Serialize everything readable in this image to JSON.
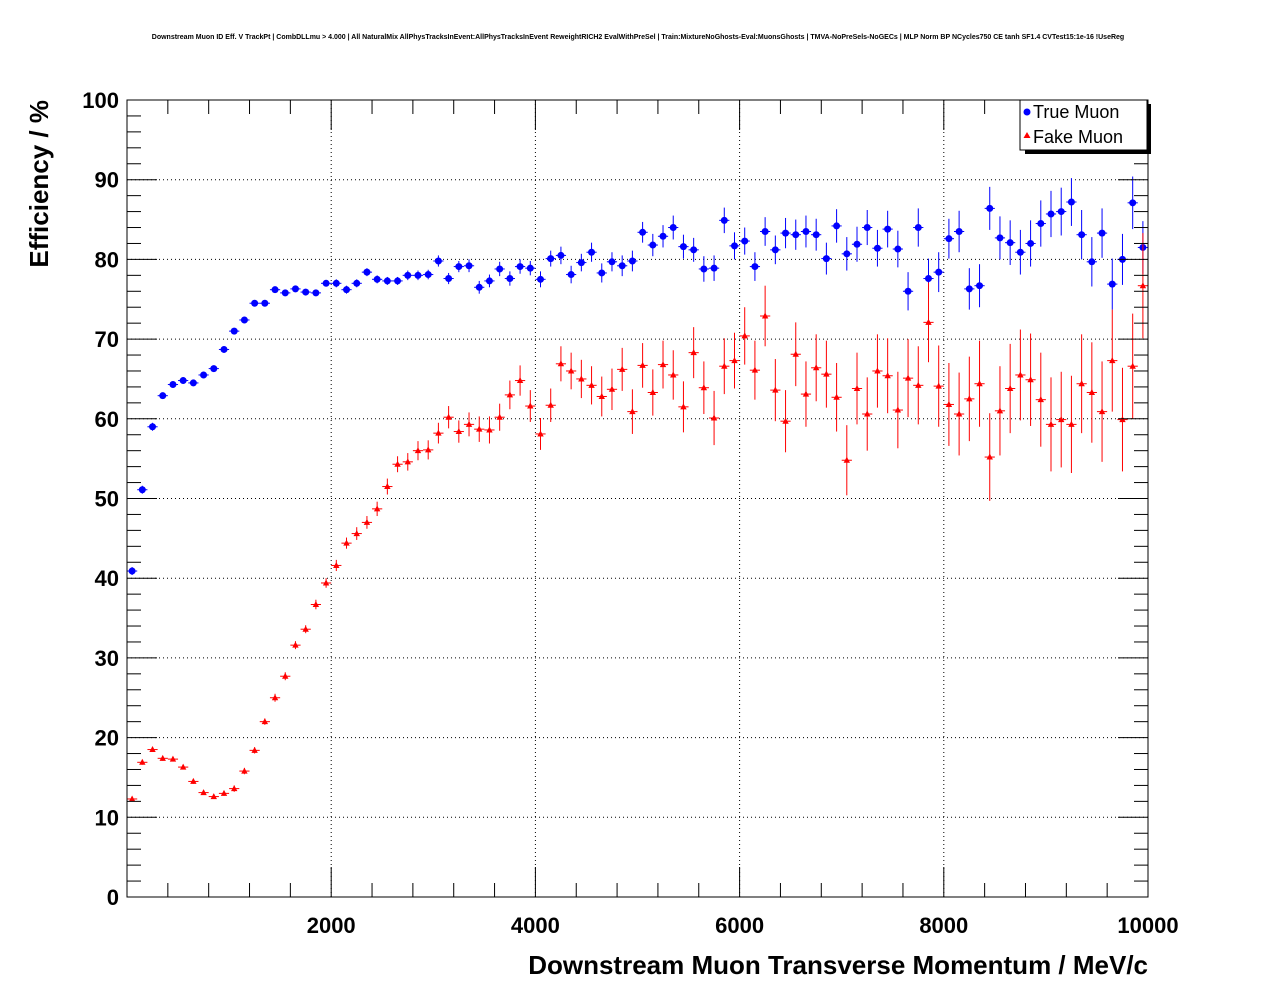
{
  "chart_data": {
    "type": "scatter",
    "title": "Downstream Muon ID Eff. V TrackPt | CombDLLmu > 4.000 | All NaturalMix AllPhysTracksInEvent:AllPhysTracksInEvent ReweightRICH2 EvalWithPreSel | Train:MixtureNoGhosts-Eval:MuonsGhosts | TMVA-NoPreSels-NoGECs | MLP Norm BP NCycles750 CE tanh SF1.4 CVTest15:1e-16 !UseReg",
    "xlabel": "Downstream Muon Transverse Momentum / MeV/c",
    "ylabel": "Efficiency / %",
    "xlim": [
      0,
      10000
    ],
    "ylim": [
      0,
      100
    ],
    "xticks": [
      2000,
      4000,
      6000,
      8000,
      10000
    ],
    "yticks": [
      0,
      10,
      20,
      30,
      40,
      50,
      60,
      70,
      80,
      90,
      100
    ],
    "grid": true,
    "legend_position": "top-right",
    "series": [
      {
        "name": "True Muon",
        "color": "#0000ff",
        "marker": "circle",
        "x": [
          50,
          150,
          250,
          350,
          450,
          550,
          650,
          750,
          850,
          950,
          1050,
          1150,
          1250,
          1350,
          1450,
          1550,
          1650,
          1750,
          1850,
          1950,
          2050,
          2150,
          2250,
          2350,
          2450,
          2550,
          2650,
          2750,
          2850,
          2950,
          3050,
          3150,
          3250,
          3350,
          3450,
          3550,
          3650,
          3750,
          3850,
          3950,
          4050,
          4150,
          4250,
          4350,
          4450,
          4550,
          4650,
          4750,
          4850,
          4950,
          5050,
          5150,
          5250,
          5350,
          5450,
          5550,
          5650,
          5750,
          5850,
          5950,
          6050,
          6150,
          6250,
          6350,
          6450,
          6550,
          6650,
          6750,
          6850,
          6950,
          7050,
          7150,
          7250,
          7350,
          7450,
          7550,
          7650,
          7750,
          7850,
          7950,
          8050,
          8150,
          8250,
          8350,
          8450,
          8550,
          8650,
          8750,
          8850,
          8950,
          9050,
          9150,
          9250,
          9350,
          9450,
          9550,
          9650,
          9750,
          9850,
          9950
        ],
        "y": [
          40.9,
          51.1,
          59.0,
          62.9,
          64.3,
          64.8,
          64.5,
          65.5,
          66.3,
          68.7,
          71.0,
          72.4,
          74.5,
          74.5,
          76.2,
          75.8,
          76.3,
          75.9,
          75.8,
          77.0,
          77.0,
          76.2,
          77.0,
          78.4,
          77.5,
          77.3,
          77.3,
          78.0,
          78.0,
          78.1,
          79.8,
          77.6,
          79.1,
          79.2,
          76.5,
          77.3,
          78.8,
          77.6,
          79.1,
          78.9,
          77.5,
          80.1,
          80.5,
          78.1,
          79.6,
          80.9,
          78.3,
          79.7,
          79.2,
          79.8,
          83.4,
          81.8,
          82.9,
          84.0,
          81.6,
          81.2,
          78.8,
          78.9,
          84.9,
          81.7,
          82.3,
          79.1,
          83.5,
          81.2,
          83.3,
          83.1,
          83.5,
          83.1,
          80.1,
          84.2,
          80.7,
          81.9,
          84.0,
          81.4,
          83.8,
          81.3,
          76.0,
          84.0,
          77.6,
          78.4,
          82.6,
          83.5,
          76.3,
          76.7,
          86.4,
          82.7,
          82.1,
          80.9,
          82.0,
          84.5,
          85.7,
          86.0,
          87.2,
          83.1,
          79.7,
          83.3,
          76.9,
          80.0,
          87.1,
          81.5
        ],
        "yerr": [
          0.5,
          0.5,
          0.5,
          0.4,
          0.4,
          0.4,
          0.4,
          0.4,
          0.4,
          0.4,
          0.4,
          0.4,
          0.4,
          0.4,
          0.4,
          0.4,
          0.4,
          0.4,
          0.4,
          0.4,
          0.5,
          0.5,
          0.5,
          0.5,
          0.5,
          0.5,
          0.5,
          0.6,
          0.6,
          0.6,
          0.7,
          0.7,
          0.7,
          0.8,
          0.8,
          0.8,
          0.9,
          0.9,
          0.9,
          0.9,
          1.0,
          1.0,
          1.1,
          1.1,
          1.1,
          1.2,
          1.2,
          1.2,
          1.3,
          1.3,
          1.3,
          1.4,
          1.4,
          1.5,
          1.5,
          1.5,
          1.6,
          1.6,
          1.6,
          1.7,
          1.7,
          1.8,
          1.8,
          1.8,
          1.9,
          1.9,
          2.0,
          2.0,
          2.0,
          2.1,
          2.1,
          2.2,
          2.2,
          2.3,
          2.3,
          2.3,
          2.4,
          2.4,
          2.5,
          2.5,
          2.5,
          2.6,
          2.6,
          2.7,
          2.7,
          2.7,
          2.8,
          2.8,
          2.9,
          2.9,
          2.9,
          3.0,
          3.0,
          3.1,
          3.1,
          3.1,
          3.2,
          3.2,
          3.3,
          3.3
        ]
      },
      {
        "name": "Fake Muon",
        "color": "#ff0000",
        "marker": "triangle",
        "x": [
          50,
          150,
          250,
          350,
          450,
          550,
          650,
          750,
          850,
          950,
          1050,
          1150,
          1250,
          1350,
          1450,
          1550,
          1650,
          1750,
          1850,
          1950,
          2050,
          2150,
          2250,
          2350,
          2450,
          2550,
          2650,
          2750,
          2850,
          2950,
          3050,
          3150,
          3250,
          3350,
          3450,
          3550,
          3650,
          3750,
          3850,
          3950,
          4050,
          4150,
          4250,
          4350,
          4450,
          4550,
          4650,
          4750,
          4850,
          4950,
          5050,
          5150,
          5250,
          5350,
          5450,
          5550,
          5650,
          5750,
          5850,
          5950,
          6050,
          6150,
          6250,
          6350,
          6450,
          6550,
          6650,
          6750,
          6850,
          6950,
          7050,
          7150,
          7250,
          7350,
          7450,
          7550,
          7650,
          7750,
          7850,
          7950,
          8050,
          8150,
          8250,
          8350,
          8450,
          8550,
          8650,
          8750,
          8850,
          8950,
          9050,
          9150,
          9250,
          9350,
          9450,
          9550,
          9650,
          9750,
          9850,
          9950
        ],
        "y": [
          12.3,
          16.9,
          18.5,
          17.4,
          17.3,
          16.3,
          14.5,
          13.1,
          12.6,
          13.0,
          13.6,
          15.8,
          18.4,
          22.0,
          25.0,
          27.7,
          31.6,
          33.6,
          36.7,
          39.4,
          41.6,
          44.4,
          45.6,
          47.0,
          48.7,
          51.5,
          54.3,
          54.6,
          56.0,
          56.1,
          58.2,
          60.2,
          58.4,
          59.3,
          58.7,
          58.6,
          60.2,
          63.0,
          64.8,
          61.6,
          58.1,
          61.7,
          66.9,
          66.0,
          65.0,
          64.2,
          62.8,
          63.7,
          66.2,
          60.9,
          66.7,
          63.3,
          66.8,
          65.5,
          61.5,
          68.3,
          63.9,
          60.1,
          66.6,
          67.3,
          70.4,
          66.1,
          72.9,
          63.6,
          59.7,
          68.1,
          63.1,
          66.4,
          65.6,
          62.7,
          54.8,
          63.8,
          60.6,
          66.0,
          65.4,
          61.1,
          65.1,
          64.2,
          72.1,
          64.1,
          61.8,
          60.6,
          62.5,
          64.4,
          55.2,
          61.0,
          63.8,
          65.5,
          64.9,
          62.4,
          59.3,
          59.9,
          59.3,
          64.4,
          63.3,
          60.9,
          67.3,
          59.9,
          66.6,
          76.7
        ],
        "yerr": [
          0.3,
          0.3,
          0.3,
          0.3,
          0.3,
          0.3,
          0.3,
          0.3,
          0.3,
          0.3,
          0.4,
          0.4,
          0.4,
          0.4,
          0.5,
          0.5,
          0.5,
          0.5,
          0.6,
          0.6,
          0.7,
          0.7,
          0.8,
          0.8,
          0.9,
          1.0,
          1.0,
          1.1,
          1.2,
          1.2,
          1.3,
          1.4,
          1.4,
          1.5,
          1.6,
          1.7,
          1.7,
          1.8,
          1.9,
          2.0,
          2.0,
          2.1,
          2.2,
          2.3,
          2.4,
          2.4,
          2.5,
          2.6,
          2.7,
          2.8,
          2.8,
          2.9,
          3.0,
          3.1,
          3.2,
          3.2,
          3.3,
          3.4,
          3.5,
          3.5,
          3.6,
          3.7,
          3.8,
          3.9,
          3.9,
          4.0,
          4.1,
          4.2,
          4.2,
          4.3,
          4.4,
          4.5,
          4.6,
          4.6,
          4.7,
          4.8,
          4.9,
          4.9,
          5.0,
          5.1,
          5.2,
          5.2,
          5.3,
          5.4,
          5.5,
          5.6,
          5.6,
          5.7,
          5.8,
          5.9,
          5.9,
          6.0,
          6.1,
          6.2,
          6.3,
          6.3,
          6.4,
          6.5,
          6.6,
          6.6
        ]
      }
    ]
  }
}
